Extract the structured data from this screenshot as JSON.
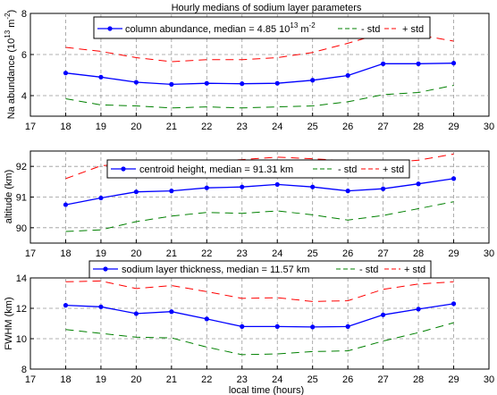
{
  "title": "Hourly medians of sodium layer parameters",
  "xlabel": "local time (hours)",
  "colors": {
    "median": "#0000ff",
    "minus_std": "#008000",
    "plus_std": "#ff0000",
    "grid": "#999999",
    "axes": "#000000"
  },
  "chart_data": [
    {
      "type": "line",
      "ylabel": "Na abundance (10^13 m^-2)",
      "xlim": [
        17,
        30
      ],
      "ylim": [
        3,
        8
      ],
      "xticks": [
        17,
        18,
        19,
        20,
        21,
        22,
        23,
        24,
        25,
        26,
        27,
        28,
        29,
        30
      ],
      "yticks": [
        4,
        6,
        8
      ],
      "grid": true,
      "legend_position": "top-center",
      "x": [
        18,
        19,
        20,
        21,
        22,
        23,
        24,
        25,
        26,
        27,
        28,
        29
      ],
      "series": [
        {
          "name": "column abundance, median = 4.85 10^13 m^-2",
          "style": "median",
          "values": [
            5.1,
            4.9,
            4.65,
            4.55,
            4.6,
            4.58,
            4.6,
            4.75,
            4.98,
            5.55,
            5.55,
            5.58
          ]
        },
        {
          "name": "- std",
          "style": "minus",
          "values": [
            3.85,
            3.55,
            3.5,
            3.4,
            3.45,
            3.4,
            3.45,
            3.5,
            3.7,
            4.05,
            4.15,
            4.5
          ]
        },
        {
          "name": "+ std",
          "style": "plus",
          "values": [
            6.35,
            6.15,
            5.85,
            5.65,
            5.75,
            5.75,
            5.85,
            6.1,
            6.55,
            7.05,
            6.95,
            6.65
          ]
        }
      ],
      "legend": {
        "median_main": "column abundance, median = 4.85 10",
        "median_exp": "13",
        "median_unit": " m",
        "median_unit_exp": "-2",
        "minus": "- std",
        "plus": "+ std"
      },
      "ylabel_parts": {
        "main": "Na abundance (10",
        "exp1": "13",
        "mid": " m",
        "exp2": "-2",
        "end": ")"
      }
    },
    {
      "type": "line",
      "ylabel": "altitude (km)",
      "xlim": [
        17,
        30
      ],
      "ylim": [
        89.5,
        92.5
      ],
      "xticks": [
        17,
        18,
        19,
        20,
        21,
        22,
        23,
        24,
        25,
        26,
        27,
        28,
        29,
        30
      ],
      "yticks": [
        90,
        91,
        92
      ],
      "grid": true,
      "legend_position": "top-center",
      "x": [
        18,
        19,
        20,
        21,
        22,
        23,
        24,
        25,
        26,
        27,
        28,
        29
      ],
      "series": [
        {
          "name": "centroid height, median = 91.31 km",
          "style": "median",
          "values": [
            90.75,
            90.97,
            91.17,
            91.2,
            91.3,
            91.33,
            91.41,
            91.33,
            91.2,
            91.27,
            91.43,
            91.6
          ]
        },
        {
          "name": "- std",
          "style": "minus",
          "values": [
            89.88,
            89.93,
            90.2,
            90.38,
            90.5,
            90.47,
            90.55,
            90.42,
            90.25,
            90.4,
            90.62,
            90.85
          ]
        },
        {
          "name": "+ std",
          "style": "plus",
          "values": [
            91.6,
            92.02,
            92.1,
            92.07,
            92.15,
            92.22,
            92.3,
            92.25,
            92.18,
            92.12,
            92.2,
            92.4
          ]
        }
      ],
      "legend": {
        "median": "centroid height, median = 91.31 km",
        "minus": "- std",
        "plus": "+ std"
      }
    },
    {
      "type": "line",
      "ylabel": "FWHM (km)",
      "xlim": [
        17,
        30
      ],
      "ylim": [
        8,
        14
      ],
      "xticks": [
        17,
        18,
        19,
        20,
        21,
        22,
        23,
        24,
        25,
        26,
        27,
        28,
        29,
        30
      ],
      "yticks": [
        8,
        10,
        12,
        14
      ],
      "grid": true,
      "legend_position": "top-center",
      "x": [
        18,
        19,
        20,
        21,
        22,
        23,
        24,
        25,
        26,
        27,
        28,
        29
      ],
      "series": [
        {
          "name": "sodium layer thickness, median = 11.57 km",
          "style": "median",
          "values": [
            12.2,
            12.1,
            11.65,
            11.78,
            11.3,
            10.8,
            10.8,
            10.77,
            10.8,
            11.57,
            11.95,
            12.3
          ]
        },
        {
          "name": "- std",
          "style": "minus",
          "values": [
            10.6,
            10.35,
            10.1,
            10.05,
            9.45,
            8.95,
            9.0,
            9.15,
            9.2,
            9.85,
            10.4,
            11.05
          ]
        },
        {
          "name": "+ std",
          "style": "plus",
          "values": [
            13.75,
            13.8,
            13.3,
            13.5,
            13.1,
            12.65,
            12.7,
            12.45,
            12.5,
            13.25,
            13.6,
            13.75
          ]
        }
      ],
      "legend": {
        "median": "sodium layer thickness, median = 11.57 km",
        "minus": "- std",
        "plus": "+ std"
      }
    }
  ]
}
